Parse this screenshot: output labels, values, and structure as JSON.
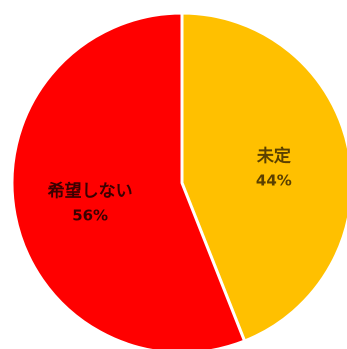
{
  "chart_data": {
    "type": "pie",
    "slices": [
      {
        "label": "未定",
        "value": 44,
        "percent_label": "44%",
        "color": "#FFC000",
        "text_color": "#5a4000"
      },
      {
        "label": "希望しない",
        "value": 56,
        "percent_label": "56%",
        "color": "#FF0000",
        "text_color": "#3a0000"
      }
    ],
    "start_angle_deg": 0,
    "direction": "clockwise",
    "slice_border_color": "#ffffff"
  }
}
